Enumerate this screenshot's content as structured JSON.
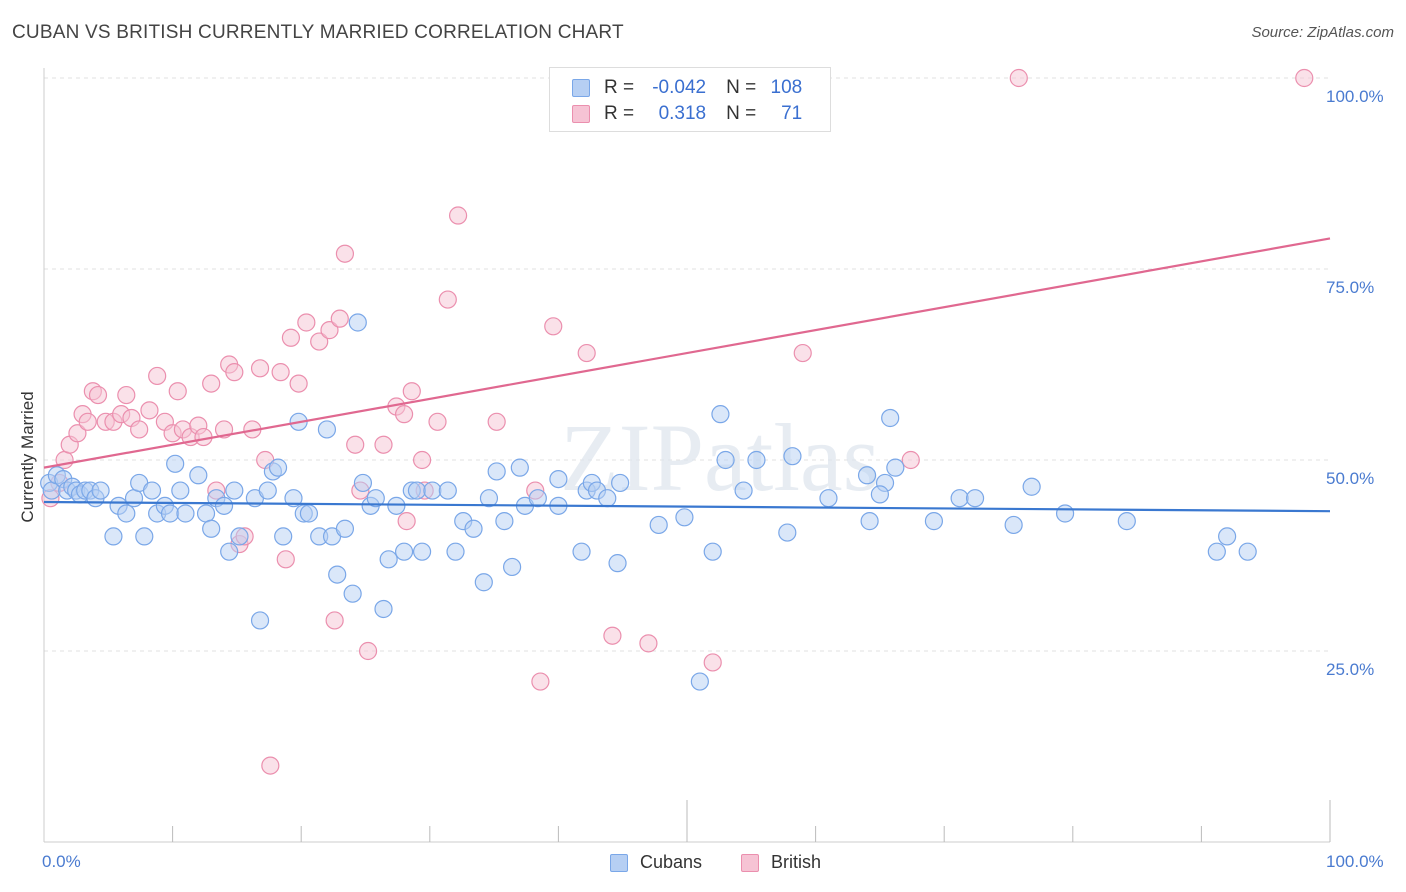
{
  "title": "CUBAN VS BRITISH CURRENTLY MARRIED CORRELATION CHART",
  "source": "Source: ZipAtlas.com",
  "watermark": "ZIPatlas",
  "legend": {
    "rows": [
      {
        "r_label": "R =",
        "r_value": "-0.042",
        "n_label": "N =",
        "n_value": "108"
      },
      {
        "r_label": "R =",
        "r_value": "0.318",
        "n_label": "N =",
        "n_value": "71"
      }
    ]
  },
  "chart_data": {
    "type": "scatter",
    "ylabel": "Currently Married",
    "xlim": [
      0,
      100
    ],
    "ylim": [
      0,
      100
    ],
    "x_tick_labels": [
      "0.0%",
      "100.0%"
    ],
    "y_ticks": [
      {
        "value": 100,
        "label": "100.0%"
      },
      {
        "value": 75,
        "label": "75.0%"
      },
      {
        "value": 50,
        "label": "50.0%"
      },
      {
        "value": 25,
        "label": "25.0%"
      }
    ],
    "grid": true,
    "legend_position": "top-center",
    "series": [
      {
        "name": "Cubans",
        "color": "#7aa7e8",
        "fill": "#b6cff3",
        "line_color": "#3a78d0",
        "trend": {
          "x": [
            0,
            100
          ],
          "y": [
            44.5,
            43.3
          ]
        },
        "points": [
          [
            0.4,
            47
          ],
          [
            0.6,
            46
          ],
          [
            1.0,
            48
          ],
          [
            1.5,
            47.5
          ],
          [
            1.8,
            46
          ],
          [
            2.2,
            46.5
          ],
          [
            2.5,
            46
          ],
          [
            2.8,
            45.5
          ],
          [
            3.2,
            46
          ],
          [
            3.6,
            46
          ],
          [
            4.0,
            45
          ],
          [
            4.4,
            46
          ],
          [
            5.4,
            40
          ],
          [
            5.8,
            44
          ],
          [
            6.4,
            43
          ],
          [
            7.0,
            45
          ],
          [
            7.4,
            47
          ],
          [
            7.8,
            40
          ],
          [
            8.4,
            46
          ],
          [
            8.8,
            43
          ],
          [
            9.4,
            44
          ],
          [
            9.8,
            43
          ],
          [
            10.2,
            49.5
          ],
          [
            10.6,
            46
          ],
          [
            11.0,
            43
          ],
          [
            12.0,
            48
          ],
          [
            12.6,
            43
          ],
          [
            13.0,
            41
          ],
          [
            13.4,
            45
          ],
          [
            14.0,
            44
          ],
          [
            14.4,
            38
          ],
          [
            14.8,
            46
          ],
          [
            15.2,
            40
          ],
          [
            16.4,
            45
          ],
          [
            16.8,
            29
          ],
          [
            17.4,
            46
          ],
          [
            17.8,
            48.5
          ],
          [
            18.2,
            49
          ],
          [
            18.6,
            40
          ],
          [
            19.4,
            45
          ],
          [
            19.8,
            55
          ],
          [
            20.2,
            43
          ],
          [
            20.6,
            43
          ],
          [
            21.4,
            40
          ],
          [
            22.0,
            54
          ],
          [
            22.4,
            40
          ],
          [
            22.8,
            35
          ],
          [
            23.4,
            41
          ],
          [
            24.0,
            32.5
          ],
          [
            24.4,
            68
          ],
          [
            24.8,
            47
          ],
          [
            25.4,
            44
          ],
          [
            25.8,
            45
          ],
          [
            26.4,
            30.5
          ],
          [
            26.8,
            37
          ],
          [
            27.4,
            44
          ],
          [
            28.0,
            38
          ],
          [
            28.6,
            46
          ],
          [
            29.0,
            46
          ],
          [
            29.4,
            38
          ],
          [
            30.2,
            46
          ],
          [
            31.4,
            46
          ],
          [
            32.0,
            38
          ],
          [
            32.6,
            42
          ],
          [
            33.4,
            41
          ],
          [
            34.2,
            34
          ],
          [
            34.6,
            45
          ],
          [
            35.2,
            48.5
          ],
          [
            35.8,
            42
          ],
          [
            36.4,
            36
          ],
          [
            37.0,
            49
          ],
          [
            37.4,
            44
          ],
          [
            38.4,
            45
          ],
          [
            40.0,
            44
          ],
          [
            41.8,
            38
          ],
          [
            42.2,
            46
          ],
          [
            42.6,
            47
          ],
          [
            43.0,
            46
          ],
          [
            43.8,
            45
          ],
          [
            44.6,
            36.5
          ],
          [
            44.8,
            47
          ],
          [
            47.8,
            41.5
          ],
          [
            49.8,
            42.5
          ],
          [
            52.0,
            38
          ],
          [
            52.6,
            56
          ],
          [
            53.0,
            50
          ],
          [
            54.4,
            46
          ],
          [
            55.4,
            50
          ],
          [
            57.8,
            40.5
          ],
          [
            58.2,
            50.5
          ],
          [
            61.0,
            45
          ],
          [
            64.2,
            42
          ],
          [
            65.4,
            47
          ],
          [
            65.8,
            55.5
          ],
          [
            66.2,
            49
          ],
          [
            69.2,
            42
          ],
          [
            71.2,
            45
          ],
          [
            72.4,
            45
          ],
          [
            75.4,
            41.5
          ],
          [
            76.8,
            46.5
          ],
          [
            79.4,
            43
          ],
          [
            84.2,
            42
          ],
          [
            91.2,
            38
          ],
          [
            92.0,
            40
          ],
          [
            93.6,
            38
          ],
          [
            65.0,
            45.5
          ],
          [
            64.0,
            48
          ],
          [
            40.0,
            47.5
          ],
          [
            51.0,
            21
          ]
        ]
      },
      {
        "name": "British",
        "color": "#eb8fae",
        "fill": "#f6c3d4",
        "line_color": "#e06890",
        "trend": {
          "x": [
            0,
            100
          ],
          "y": [
            49,
            79
          ]
        },
        "points": [
          [
            0.5,
            45
          ],
          [
            1.2,
            47
          ],
          [
            1.6,
            50
          ],
          [
            2.0,
            52
          ],
          [
            2.6,
            53.5
          ],
          [
            3.0,
            56
          ],
          [
            3.4,
            55
          ],
          [
            3.8,
            59
          ],
          [
            4.2,
            58.5
          ],
          [
            4.8,
            55
          ],
          [
            5.4,
            55
          ],
          [
            6.0,
            56
          ],
          [
            6.4,
            58.5
          ],
          [
            6.8,
            55.5
          ],
          [
            7.4,
            54
          ],
          [
            8.2,
            56.5
          ],
          [
            8.8,
            61
          ],
          [
            9.4,
            55
          ],
          [
            10.0,
            53.5
          ],
          [
            10.4,
            59
          ],
          [
            10.8,
            54
          ],
          [
            11.4,
            53
          ],
          [
            12.0,
            54.5
          ],
          [
            12.4,
            53
          ],
          [
            13.0,
            60
          ],
          [
            13.4,
            46
          ],
          [
            14.0,
            54
          ],
          [
            14.4,
            62.5
          ],
          [
            14.8,
            61.5
          ],
          [
            15.2,
            39
          ],
          [
            15.6,
            40
          ],
          [
            16.2,
            54
          ],
          [
            16.8,
            62
          ],
          [
            17.2,
            50
          ],
          [
            17.6,
            10
          ],
          [
            18.4,
            61.5
          ],
          [
            18.8,
            37
          ],
          [
            19.2,
            66
          ],
          [
            19.8,
            60
          ],
          [
            20.4,
            68
          ],
          [
            21.4,
            65.5
          ],
          [
            22.2,
            67
          ],
          [
            22.6,
            29
          ],
          [
            23.0,
            68.5
          ],
          [
            23.4,
            77
          ],
          [
            24.2,
            52
          ],
          [
            24.6,
            46
          ],
          [
            25.2,
            25
          ],
          [
            26.4,
            52
          ],
          [
            27.4,
            57
          ],
          [
            28.0,
            56
          ],
          [
            28.2,
            42
          ],
          [
            28.6,
            59
          ],
          [
            29.4,
            50
          ],
          [
            29.6,
            46
          ],
          [
            30.6,
            55
          ],
          [
            31.4,
            71
          ],
          [
            32.2,
            82
          ],
          [
            35.2,
            55
          ],
          [
            38.2,
            46
          ],
          [
            38.6,
            21
          ],
          [
            39.6,
            67.5
          ],
          [
            42.2,
            64
          ],
          [
            44.2,
            27
          ],
          [
            47.0,
            26
          ],
          [
            50.6,
            95
          ],
          [
            52.0,
            23.5
          ],
          [
            59.0,
            64
          ],
          [
            67.4,
            50
          ],
          [
            75.8,
            100
          ],
          [
            98.0,
            100
          ]
        ]
      }
    ]
  }
}
